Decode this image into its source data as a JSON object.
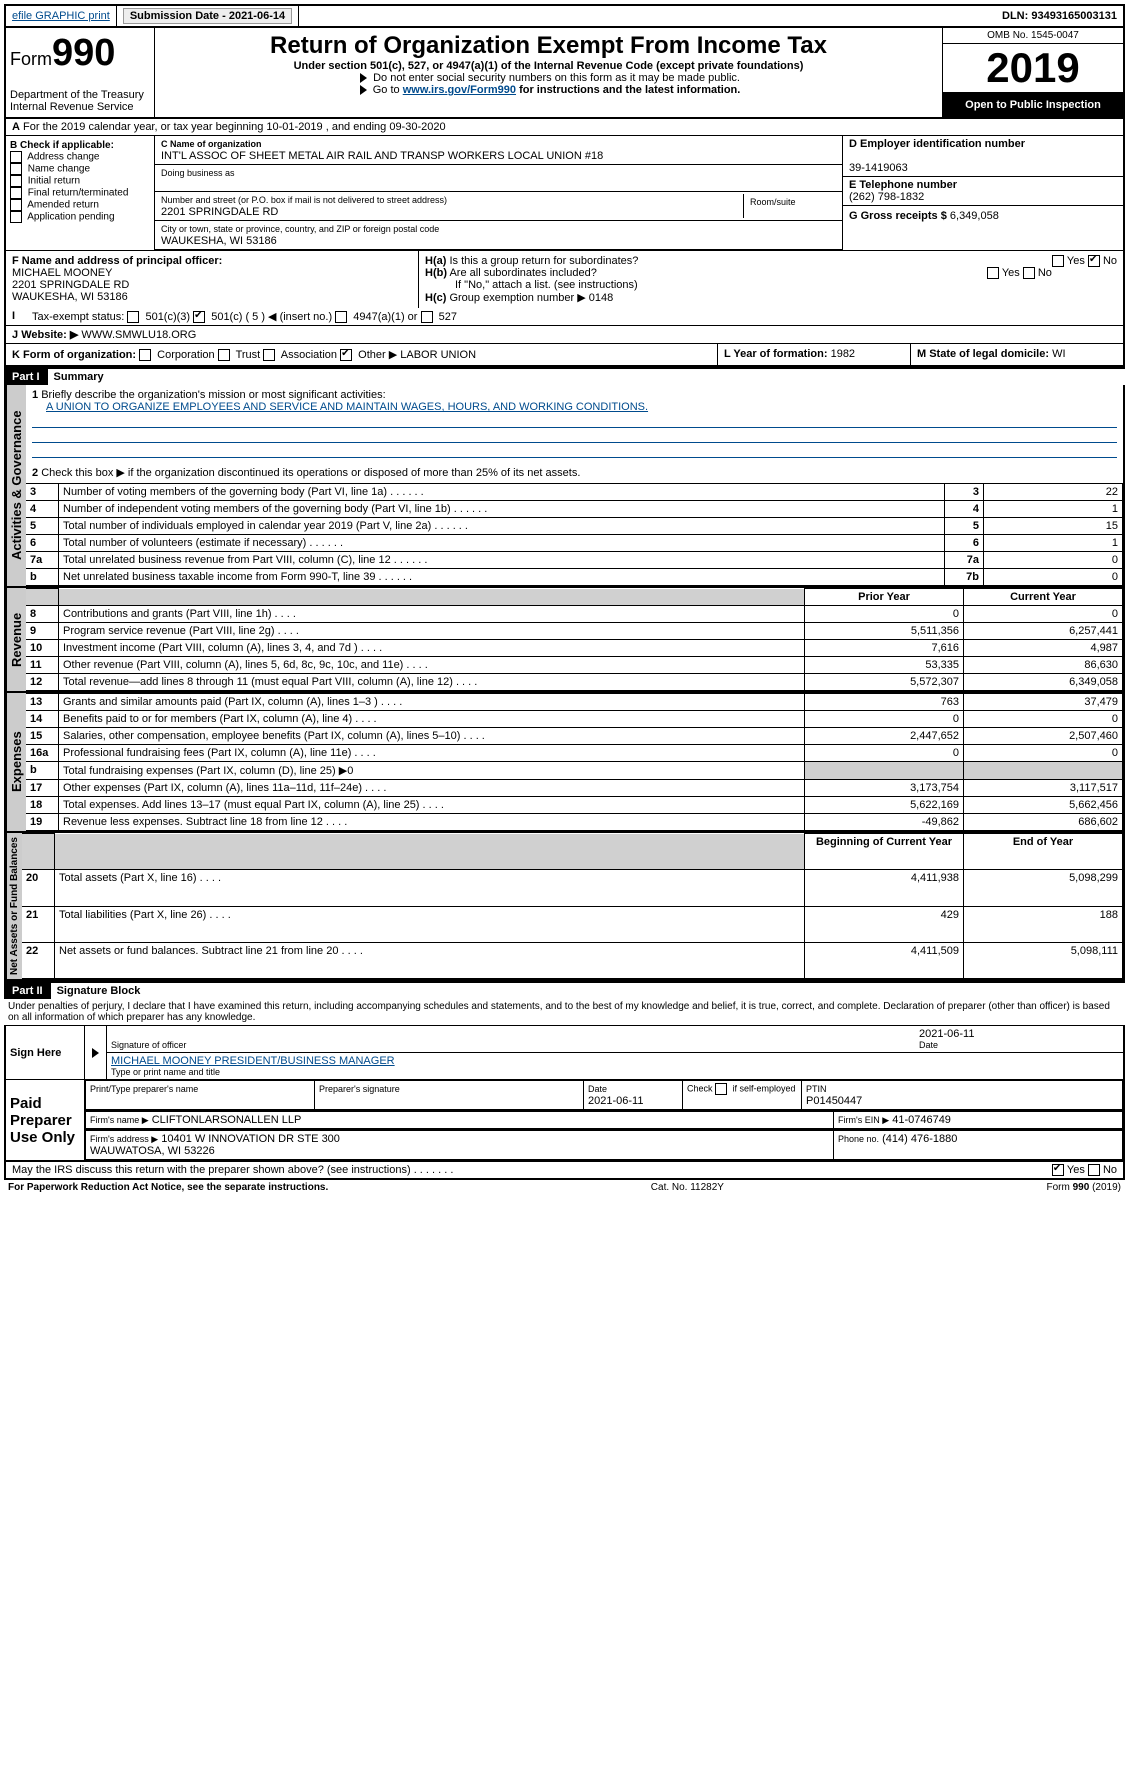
{
  "topbar": {
    "efile": "efile GRAPHIC print",
    "submission_label": "Submission Date - 2021-06-14",
    "dln": "DLN: 93493165003131"
  },
  "header": {
    "form_label": "Form",
    "form_number": "990",
    "dept": "Department of the Treasury",
    "irs": "Internal Revenue Service",
    "title": "Return of Organization Exempt From Income Tax",
    "subtitle": "Under section 501(c), 527, or 4947(a)(1) of the Internal Revenue Code (except private foundations)",
    "note1": "Do not enter social security numbers on this form as it may be made public.",
    "note2_pre": "Go to ",
    "note2_link": "www.irs.gov/Form990",
    "note2_post": " for instructions and the latest information.",
    "omb": "OMB No. 1545-0047",
    "year": "2019",
    "open": "Open to Public Inspection"
  },
  "A": {
    "line": "For the 2019 calendar year, or tax year beginning 10-01-2019    , and ending 09-30-2020",
    "prefix": "A"
  },
  "B": {
    "label": "B Check if applicable:",
    "opts": [
      "Address change",
      "Name change",
      "Initial return",
      "Final return/terminated",
      "Amended return",
      "Application pending"
    ]
  },
  "C": {
    "name_label": "C Name of organization",
    "name": "INT'L ASSOC OF SHEET METAL AIR RAIL AND TRANSP WORKERS LOCAL UNION #18",
    "dba_label": "Doing business as",
    "addr_label": "Number and street (or P.O. box if mail is not delivered to street address)",
    "room_label": "Room/suite",
    "addr": "2201 SPRINGDALE RD",
    "city_label": "City or town, state or province, country, and ZIP or foreign postal code",
    "city": "WAUKESHA, WI  53186"
  },
  "D": {
    "label": "D Employer identification number",
    "val": "39-1419063"
  },
  "E": {
    "label": "E Telephone number",
    "val": "(262) 798-1832"
  },
  "G": {
    "label": "G Gross receipts $",
    "val": "6,349,058"
  },
  "F": {
    "label": "F  Name and address of principal officer:",
    "name": "MICHAEL MOONEY",
    "addr": "2201 SPRINGDALE RD",
    "city": "WAUKESHA, WI  53186"
  },
  "H": {
    "a": "Is this a group return for subordinates?",
    "b": "Are all subordinates included?",
    "b_note": "If \"No,\" attach a list. (see instructions)",
    "c": "Group exemption number ▶",
    "c_val": "0148",
    "yes": "Yes",
    "no": "No"
  },
  "I": {
    "label": "Tax-exempt status:",
    "opts": [
      "501(c)(3)",
      "501(c) ( 5 ) ◀ (insert no.)",
      "4947(a)(1) or",
      "527"
    ]
  },
  "J": {
    "label": "Website: ▶",
    "val": "WWW.SMWLU18.ORG"
  },
  "K": {
    "label": "K Form of organization:",
    "opts": [
      "Corporation",
      "Trust",
      "Association",
      "Other ▶"
    ],
    "other": "LABOR UNION"
  },
  "L": {
    "label": "L Year of formation:",
    "val": "1982"
  },
  "M": {
    "label": "M State of legal domicile:",
    "val": "WI"
  },
  "partI": {
    "hdr": "Part I",
    "title": "Summary",
    "l1": "Briefly describe the organization's mission or most significant activities:",
    "l1v": "A UNION TO ORGANIZE EMPLOYEES AND SERVICE AND MAINTAIN WAGES, HOURS, AND WORKING CONDITIONS.",
    "l2": "Check this box ▶      if the organization discontinued its operations or disposed of more than 25% of its net assets.",
    "rows_gov": [
      {
        "n": "3",
        "t": "Number of voting members of the governing body (Part VI, line 1a)",
        "c": "3",
        "v": "22"
      },
      {
        "n": "4",
        "t": "Number of independent voting members of the governing body (Part VI, line 1b)",
        "c": "4",
        "v": "1"
      },
      {
        "n": "5",
        "t": "Total number of individuals employed in calendar year 2019 (Part V, line 2a)",
        "c": "5",
        "v": "15"
      },
      {
        "n": "6",
        "t": "Total number of volunteers (estimate if necessary)",
        "c": "6",
        "v": "1"
      },
      {
        "n": "7a",
        "t": "Total unrelated business revenue from Part VIII, column (C), line 12",
        "c": "7a",
        "v": "0"
      },
      {
        "n": "b",
        "t": "Net unrelated business taxable income from Form 990-T, line 39",
        "c": "7b",
        "v": "0"
      }
    ],
    "col_prior": "Prior Year",
    "col_current": "Current Year",
    "rows_rev": [
      {
        "n": "8",
        "t": "Contributions and grants (Part VIII, line 1h)",
        "p": "0",
        "c": "0"
      },
      {
        "n": "9",
        "t": "Program service revenue (Part VIII, line 2g)",
        "p": "5,511,356",
        "c": "6,257,441"
      },
      {
        "n": "10",
        "t": "Investment income (Part VIII, column (A), lines 3, 4, and 7d )",
        "p": "7,616",
        "c": "4,987"
      },
      {
        "n": "11",
        "t": "Other revenue (Part VIII, column (A), lines 5, 6d, 8c, 9c, 10c, and 11e)",
        "p": "53,335",
        "c": "86,630"
      },
      {
        "n": "12",
        "t": "Total revenue—add lines 8 through 11 (must equal Part VIII, column (A), line 12)",
        "p": "5,572,307",
        "c": "6,349,058"
      }
    ],
    "rows_exp": [
      {
        "n": "13",
        "t": "Grants and similar amounts paid (Part IX, column (A), lines 1–3 )",
        "p": "763",
        "c": "37,479"
      },
      {
        "n": "14",
        "t": "Benefits paid to or for members (Part IX, column (A), line 4)",
        "p": "0",
        "c": "0"
      },
      {
        "n": "15",
        "t": "Salaries, other compensation, employee benefits (Part IX, column (A), lines 5–10)",
        "p": "2,447,652",
        "c": "2,507,460"
      },
      {
        "n": "16a",
        "t": "Professional fundraising fees (Part IX, column (A), line 11e)",
        "p": "0",
        "c": "0"
      },
      {
        "n": "b",
        "t": "Total fundraising expenses (Part IX, column (D), line 25) ▶0",
        "p": "",
        "c": "",
        "shade": true
      },
      {
        "n": "17",
        "t": "Other expenses (Part IX, column (A), lines 11a–11d, 11f–24e)",
        "p": "3,173,754",
        "c": "3,117,517"
      },
      {
        "n": "18",
        "t": "Total expenses. Add lines 13–17 (must equal Part IX, column (A), line 25)",
        "p": "5,622,169",
        "c": "5,662,456"
      },
      {
        "n": "19",
        "t": "Revenue less expenses. Subtract line 18 from line 12",
        "p": "-49,862",
        "c": "686,602"
      }
    ],
    "col_beg": "Beginning of Current Year",
    "col_end": "End of Year",
    "rows_net": [
      {
        "n": "20",
        "t": "Total assets (Part X, line 16)",
        "p": "4,411,938",
        "c": "5,098,299"
      },
      {
        "n": "21",
        "t": "Total liabilities (Part X, line 26)",
        "p": "429",
        "c": "188"
      },
      {
        "n": "22",
        "t": "Net assets or fund balances. Subtract line 21 from line 20",
        "p": "4,411,509",
        "c": "5,098,111"
      }
    ]
  },
  "partII": {
    "hdr": "Part II",
    "title": "Signature Block",
    "decl": "Under penalties of perjury, I declare that I have examined this return, including accompanying schedules and statements, and to the best of my knowledge and belief, it is true, correct, and complete. Declaration of preparer (other than officer) is based on all information of which preparer has any knowledge.",
    "sign_here": "Sign Here",
    "sig_officer": "Signature of officer",
    "date": "Date",
    "date_val": "2021-06-11",
    "typed": "MICHAEL MOONEY  PRESIDENT/BUSINESS MANAGER",
    "typed_label": "Type or print name and title",
    "paid": "Paid Preparer Use Only",
    "pp_name_label": "Print/Type preparer's name",
    "pp_sig_label": "Preparer's signature",
    "pp_date": "2021-06-11",
    "self_emp": "Check       if self-employed",
    "ptin_label": "PTIN",
    "ptin": "P01450447",
    "firm_name_label": "Firm's name   ▶",
    "firm_name": "CLIFTONLARSONALLEN LLP",
    "firm_ein_label": "Firm's EIN ▶",
    "firm_ein": "41-0746749",
    "firm_addr_label": "Firm's address ▶",
    "firm_addr": "10401 W INNOVATION DR STE 300",
    "firm_city": "WAUWATOSA, WI  53226",
    "phone_label": "Phone no.",
    "phone": "(414) 476-1880",
    "discuss": "May the IRS discuss this return with the preparer shown above? (see instructions)"
  },
  "footer": {
    "pra": "For Paperwork Reduction Act Notice, see the separate instructions.",
    "cat": "Cat. No. 11282Y",
    "form": "Form 990 (2019)"
  },
  "vtabs": {
    "gov": "Activities & Governance",
    "rev": "Revenue",
    "exp": "Expenses",
    "net": "Net Assets or Fund Balances"
  }
}
